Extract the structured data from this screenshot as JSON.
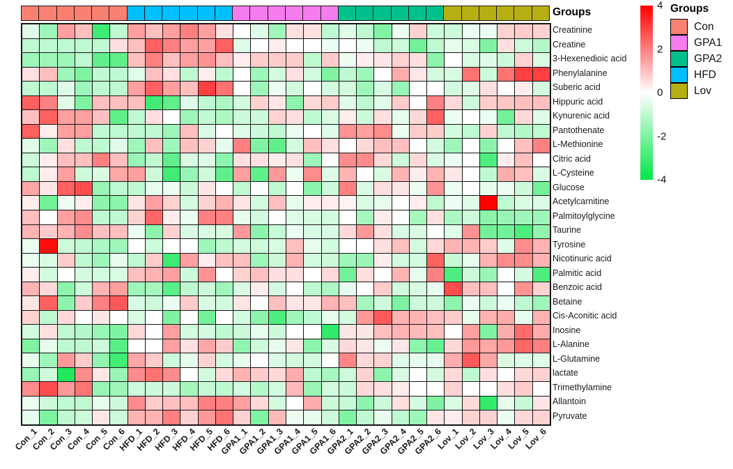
{
  "annotation": {
    "title": "Groups"
  },
  "legend": {
    "groups_title": "Groups",
    "groups": [
      {
        "label": "Con",
        "color": "#FA8072"
      },
      {
        "label": "GPA1",
        "color": "#F57CEF"
      },
      {
        "label": "GPA2",
        "color": "#00C08B"
      },
      {
        "label": "HFD",
        "color": "#00BFFF"
      },
      {
        "label": "Lov",
        "color": "#B6AF14"
      }
    ],
    "colorbar": {
      "ticks": [
        4,
        2,
        0,
        -2,
        -4
      ]
    }
  },
  "chart_data": {
    "type": "heatmap",
    "title": "",
    "columns": [
      "Con_1",
      "Con_2",
      "Con_3",
      "Con_4",
      "Con_5",
      "Con_6",
      "HFD_1",
      "HFD_2",
      "HFD_3",
      "HFD_4",
      "HFD_5",
      "HFD_6",
      "GPA1_1",
      "GPA1_2",
      "GPA1_3",
      "GPA1_4",
      "GPA1_5",
      "GPA1_6",
      "GPA2_1",
      "GPA2_2",
      "GPA2_3",
      "GPA2_4",
      "GPA2_5",
      "GPA2_6",
      "Lov_1",
      "Lov_2",
      "Lov_3",
      "Lov_4",
      "Lov_5",
      "Lov_6"
    ],
    "column_groups": [
      {
        "label": "Con",
        "color": "#FA8072",
        "span": 6
      },
      {
        "label": "HFD",
        "color": "#00BFFF",
        "span": 6
      },
      {
        "label": "GPA1",
        "color": "#F57CEF",
        "span": 6
      },
      {
        "label": "GPA2",
        "color": "#00C08B",
        "span": 6
      },
      {
        "label": "Lov",
        "color": "#B6AF14",
        "span": 6
      }
    ],
    "rows": [
      "Creatinine",
      "Creatine",
      "3-Hexenedioic acid",
      "Phenylalanine",
      "Suberic acid",
      "Hippuric acid",
      "Kynurenic acid",
      "Pantothenate",
      "L-Methionine",
      "Citric acid",
      "L-Cysteine",
      "Glucose",
      "Acetylcarnitine",
      "Palmitoylglycine",
      "Taurine",
      "Tyrosine",
      "Nicotinuric acid",
      "Palmitic acid",
      "Benzoic acid",
      "Betaine",
      "Cis-Aconitic acid",
      "Inosine",
      "L-Alanine",
      "L-Glutamine",
      "lactate",
      "Trimethylamine",
      "Allantoin",
      "Pyruvate"
    ],
    "scale": {
      "min": -4,
      "max": 4,
      "negative_end": "#00E646",
      "zero": "#FFFFFF",
      "positive_end": "#FF0000"
    },
    "values": [
      [
        -0.5,
        -1.5,
        1.5,
        1.0,
        -3.0,
        -1.0,
        1.5,
        1.0,
        1.5,
        2.0,
        1.5,
        0.5,
        0.0,
        -0.5,
        -1.5,
        0.5,
        0.5,
        -1.0,
        -0.5,
        -1.0,
        -2.0,
        -0.3,
        0.7,
        -0.8,
        -0.8,
        -0.3,
        -0.3,
        0.7,
        0.8,
        0.7
      ],
      [
        -1.0,
        -1.0,
        -1.0,
        -1.0,
        -1.0,
        0.5,
        1.0,
        2.5,
        2.0,
        1.5,
        1.5,
        2.5,
        -0.5,
        0.0,
        0.3,
        0.0,
        0.0,
        -0.3,
        0.0,
        -0.3,
        -1.0,
        -0.8,
        -2.2,
        -1.0,
        -0.4,
        -0.6,
        -2.0,
        0.5,
        -0.8,
        -1.2
      ],
      [
        -1.5,
        -1.5,
        -1.5,
        -1.0,
        -2.5,
        -2.5,
        1.0,
        2.0,
        1.0,
        1.5,
        1.7,
        1.0,
        0.3,
        0.8,
        0.8,
        0.8,
        -1.0,
        0.8,
        -0.3,
        0.3,
        0.4,
        0.7,
        0.5,
        -1.8,
        0.0,
        -0.6,
        -0.5,
        -0.8,
        0.7,
        -0.6
      ],
      [
        0.5,
        1.0,
        -1.5,
        -2.0,
        -1.0,
        -1.0,
        -0.5,
        1.0,
        0.5,
        -1.0,
        0.3,
        -1.0,
        0.0,
        -1.5,
        -0.7,
        0.5,
        -0.7,
        -2.0,
        -1.0,
        -1.5,
        0.0,
        1.3,
        0.4,
        -0.7,
        -0.6,
        2.2,
        -0.8,
        2.2,
        3.0,
        3.0
      ],
      [
        -1.0,
        -1.0,
        -0.5,
        -1.5,
        -1.0,
        -1.0,
        1.5,
        2.5,
        1.5,
        1.0,
        3.0,
        2.2,
        0.0,
        -1.5,
        -0.3,
        -0.7,
        0.0,
        -0.7,
        -0.7,
        -1.5,
        -0.6,
        -1.6,
        0.0,
        0.0,
        -0.7,
        -0.5,
        0.5,
        0.0,
        0.3,
        -0.7
      ],
      [
        2.5,
        2.0,
        -0.5,
        -2.0,
        1.0,
        1.0,
        1.0,
        -3.0,
        -2.5,
        -0.5,
        -1.0,
        -1.3,
        -0.7,
        0.7,
        0.4,
        -1.8,
        0.6,
        0.8,
        -0.5,
        -1.0,
        -0.5,
        0.8,
        0.0,
        2.0,
        0.6,
        -0.8,
        0.8,
        0.9,
        1.0,
        1.0
      ],
      [
        1.0,
        2.5,
        1.5,
        1.5,
        1.0,
        -2.5,
        -1.0,
        0.5,
        0.0,
        -1.5,
        -1.0,
        -1.3,
        -0.8,
        -0.8,
        0.7,
        0.5,
        -1.0,
        -0.6,
        0.3,
        -0.8,
        0.5,
        -0.4,
        0.6,
        2.5,
        -0.3,
        0.0,
        -0.3,
        -2.2,
        0.6,
        -0.5
      ],
      [
        2.5,
        0.3,
        1.5,
        1.5,
        -1.0,
        -1.0,
        -1.0,
        -1.0,
        -1.5,
        1.0,
        -0.6,
        0.0,
        -0.5,
        -0.8,
        -1.0,
        -0.3,
        0.0,
        -0.5,
        1.7,
        1.5,
        1.8,
        -0.3,
        0.8,
        0.8,
        -0.7,
        -1.0,
        0.7,
        -1.0,
        -1.2,
        -1.0
      ],
      [
        -0.5,
        -1.5,
        0.5,
        -1.0,
        -1.0,
        -0.5,
        -1.5,
        1.0,
        -1.5,
        1.0,
        0.7,
        -0.4,
        2.0,
        -2.0,
        -2.5,
        -0.7,
        1.0,
        0.5,
        0.0,
        0.6,
        1.0,
        1.0,
        0.0,
        -0.7,
        -1.5,
        0.0,
        -1.8,
        0.0,
        1.0,
        2.0
      ],
      [
        -0.8,
        0.3,
        1.0,
        1.0,
        2.0,
        1.0,
        -1.6,
        -1.0,
        -2.5,
        -0.6,
        -0.5,
        -1.8,
        0.5,
        0.5,
        0.3,
        0.5,
        -1.5,
        0.0,
        1.8,
        1.8,
        0.6,
        -0.8,
        0.6,
        -0.6,
        -0.3,
        0.0,
        -2.8,
        0.3,
        1.0,
        0.0
      ],
      [
        -1.0,
        0.3,
        1.5,
        -0.8,
        -0.6,
        1.4,
        1.5,
        -0.8,
        -3.0,
        -1.6,
        -0.8,
        -2.5,
        1.5,
        -2.5,
        1.6,
        -0.3,
        1.8,
        -0.5,
        1.2,
        0.0,
        -0.6,
        1.2,
        0.3,
        1.2,
        0.4,
        0.0,
        -1.0,
        1.3,
        1.0,
        -0.6
      ],
      [
        1.4,
        0.4,
        2.5,
        2.8,
        -1.6,
        -1.0,
        -1.0,
        -0.4,
        -0.3,
        -0.8,
        0.4,
        0.0,
        -1.0,
        0.0,
        -1.0,
        0.0,
        -1.8,
        -0.8,
        2.0,
        -0.6,
        0.5,
        0.4,
        -0.3,
        1.7,
        -0.3,
        0.0,
        -0.4,
        -0.3,
        -0.8,
        -2.2
      ],
      [
        0.3,
        -2.2,
        -0.3,
        0.3,
        -1.8,
        -1.8,
        0.4,
        1.5,
        0.7,
        -0.7,
        0.7,
        1.2,
        0.4,
        -0.7,
        1.0,
        -0.4,
        0.3,
        0.3,
        0.2,
        -0.6,
        -0.4,
        0.0,
        0.3,
        -1.0,
        -0.3,
        -0.5,
        4.0,
        -1.0,
        -0.6,
        -0.6
      ],
      [
        1.0,
        0.0,
        1.5,
        1.8,
        -1.0,
        -1.0,
        0.7,
        2.4,
        0.3,
        -0.3,
        2.0,
        2.0,
        -0.4,
        -0.7,
        0.0,
        -0.5,
        -0.6,
        -0.7,
        0.0,
        -1.4,
        0.3,
        0.0,
        -1.4,
        0.5,
        -1.3,
        -0.8,
        -1.8,
        -1.6,
        -1.5,
        -1.5
      ],
      [
        1.2,
        0.8,
        1.2,
        1.8,
        1.0,
        1.0,
        -0.3,
        -1.8,
        0.7,
        -0.6,
        -0.6,
        -0.6,
        1.6,
        -1.8,
        -0.9,
        -0.3,
        -0.6,
        -0.6,
        0.6,
        1.6,
        0.5,
        -0.6,
        -0.6,
        0.0,
        -0.5,
        1.7,
        -2.2,
        -2.2,
        -2.8,
        -1.7
      ],
      [
        -0.3,
        3.8,
        -0.8,
        -1.0,
        -1.3,
        -1.5,
        0.0,
        -0.8,
        0.0,
        0.0,
        -1.5,
        -1.0,
        -0.7,
        -0.8,
        -0.6,
        1.0,
        -0.4,
        -0.7,
        0.0,
        0.0,
        0.5,
        1.0,
        -0.7,
        0.6,
        1.2,
        1.2,
        0.8,
        -0.5,
        1.8,
        1.2
      ],
      [
        -0.3,
        -0.6,
        0.8,
        -1.0,
        -1.5,
        -0.4,
        -1.0,
        0.8,
        -3.0,
        1.5,
        0.3,
        1.0,
        1.0,
        -1.5,
        -0.8,
        1.2,
        -0.7,
        -0.8,
        -1.5,
        -1.6,
        0.3,
        -0.7,
        -0.7,
        2.5,
        -0.9,
        -0.4,
        1.2,
        1.8,
        1.8,
        1.2
      ],
      [
        0.3,
        -0.7,
        0.0,
        -0.7,
        -0.7,
        -0.6,
        1.0,
        1.2,
        1.5,
        -0.8,
        1.7,
        0.0,
        0.7,
        1.0,
        0.5,
        0.5,
        0.0,
        0.6,
        -2.2,
        0.5,
        0.0,
        1.2,
        -0.4,
        2.0,
        -2.8,
        -0.8,
        -1.6,
        0.0,
        -0.7,
        -2.8
      ],
      [
        1.2,
        0.6,
        -1.8,
        -0.8,
        1.2,
        1.5,
        -1.5,
        -1.4,
        -2.6,
        -1.0,
        -0.8,
        -1.5,
        -0.6,
        0.3,
        -0.7,
        0.0,
        -1.0,
        -1.3,
        -0.4,
        0.0,
        0.8,
        -0.7,
        -0.6,
        -0.4,
        2.8,
        1.0,
        1.0,
        0.0,
        1.7,
        0.7
      ],
      [
        0.4,
        2.5,
        -1.8,
        0.8,
        2.0,
        2.6,
        -0.6,
        -0.8,
        -0.3,
        0.8,
        -0.6,
        -0.7,
        0.4,
        0.0,
        1.0,
        0.4,
        0.4,
        1.2,
        1.0,
        -1.4,
        -0.8,
        -2.0,
        -0.8,
        -0.8,
        -1.8,
        -0.3,
        -0.8,
        -0.3,
        -1.0,
        -1.5
      ],
      [
        0.7,
        -1.0,
        0.6,
        0.0,
        0.4,
        0.0,
        -0.6,
        0.0,
        -2.0,
        0.0,
        -2.2,
        0.0,
        -0.7,
        -1.8,
        -2.8,
        -1.5,
        -1.0,
        -0.4,
        -0.7,
        1.6,
        2.6,
        1.2,
        1.2,
        1.0,
        0.8,
        -0.4,
        1.2,
        1.3,
        -0.4,
        1.2
      ],
      [
        -0.7,
        0.5,
        -1.0,
        -1.2,
        -1.6,
        -2.0,
        0.6,
        0.0,
        1.5,
        -0.7,
        -0.7,
        -1.0,
        -0.8,
        -0.4,
        -0.8,
        0.0,
        0.0,
        -3.2,
        0.4,
        0.4,
        1.0,
        1.2,
        1.1,
        1.0,
        0.0,
        1.5,
        -2.0,
        1.3,
        2.3,
        1.3
      ],
      [
        -2.0,
        -0.4,
        -1.0,
        -1.0,
        -0.8,
        -2.6,
        0.0,
        0.0,
        1.5,
        0.5,
        1.4,
        0.8,
        -1.7,
        -0.8,
        -0.4,
        0.4,
        -1.8,
        -0.6,
        0.6,
        0.4,
        -0.3,
        0.4,
        -1.8,
        -2.4,
        0.6,
        1.6,
        1.4,
        1.6,
        2.4,
        2.0
      ],
      [
        -0.4,
        -1.5,
        1.6,
        0.8,
        -1.7,
        -3.0,
        1.4,
        0.8,
        -0.8,
        -0.4,
        0.7,
        -0.7,
        -0.4,
        0.0,
        -0.6,
        -0.7,
        -0.7,
        0.0,
        1.9,
        0.6,
        0.7,
        -0.5,
        -0.4,
        -0.4,
        1.3,
        2.6,
        1.4,
        -0.6,
        -0.5,
        -0.5
      ],
      [
        -1.6,
        -0.8,
        -3.5,
        1.8,
        0.4,
        -1.6,
        1.8,
        2.2,
        1.8,
        0.0,
        -0.7,
        0.6,
        1.2,
        0.8,
        0.6,
        1.3,
        -1.0,
        -1.4,
        -0.8,
        0.7,
        -1.8,
        -0.6,
        0.0,
        -0.7,
        0.6,
        -1.0,
        0.5,
        0.0,
        0.6,
        0.7
      ],
      [
        1.8,
        2.8,
        1.6,
        2.2,
        -1.6,
        -1.5,
        -0.8,
        -0.8,
        -0.8,
        -1.4,
        -0.9,
        -1.0,
        -0.7,
        -1.2,
        -0.7,
        1.1,
        -1.6,
        -0.7,
        -0.8,
        0.6,
        0.5,
        0.3,
        0.0,
        0.0,
        0.7,
        0.0,
        0.0,
        0.5,
        0.8,
        0.0
      ],
      [
        -0.3,
        -0.8,
        -1.0,
        -1.0,
        -0.4,
        -0.8,
        1.8,
        0.8,
        1.0,
        1.0,
        2.0,
        2.0,
        1.5,
        0.6,
        -0.7,
        0.0,
        1.3,
        -0.8,
        -0.9,
        -1.8,
        -0.8,
        0.5,
        -0.7,
        -2.0,
        -0.6,
        0.6,
        -3.2,
        -0.4,
        -0.9,
        0.4
      ],
      [
        -0.4,
        -2.0,
        -1.0,
        -0.8,
        0.4,
        -0.8,
        1.2,
        1.2,
        2.0,
        0.7,
        1.6,
        2.2,
        0.7,
        -2.0,
        1.1,
        -0.3,
        -0.4,
        -0.8,
        -2.0,
        -1.0,
        -0.4,
        -1.0,
        -1.5,
        0.4,
        0.3,
        0.7,
        0.7,
        -0.3,
        0.6,
        0.7
      ]
    ],
    "legend_position": "right",
    "grid": true
  }
}
